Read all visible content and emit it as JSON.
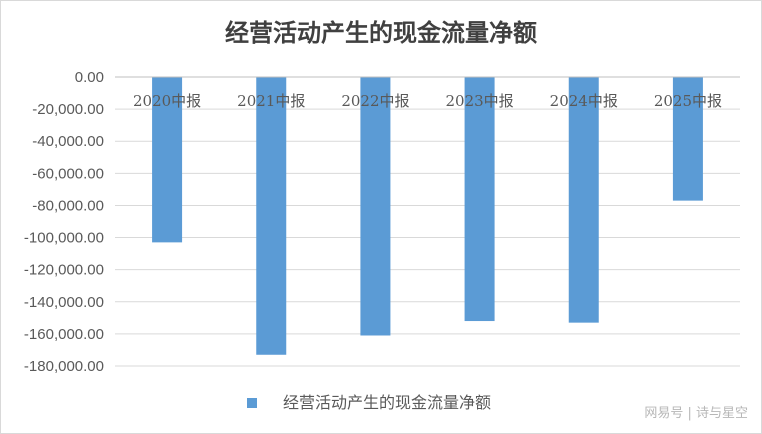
{
  "watermark": "网易号 | 诗与星空",
  "chart_data": {
    "type": "bar",
    "title": "经营活动产生的现金流量净额",
    "categories": [
      "2020中报",
      "2021中报",
      "2022中报",
      "2023中报",
      "2024中报",
      "2025中报"
    ],
    "series": [
      {
        "name": "经营活动产生的现金流量净额",
        "values": [
          -103000,
          -173000,
          -161000,
          -152000,
          -153000,
          -77000
        ],
        "color": "#5B9BD5"
      }
    ],
    "ylim": [
      -180000,
      0
    ],
    "yticks": [
      "0.00",
      "-20,000.00",
      "-40,000.00",
      "-60,000.00",
      "-80,000.00",
      "-100,000.00",
      "-120,000.00",
      "-140,000.00",
      "-160,000.00",
      "-180,000.00"
    ],
    "xlabel": "",
    "ylabel": "",
    "grid": true,
    "legend": "bottom"
  }
}
